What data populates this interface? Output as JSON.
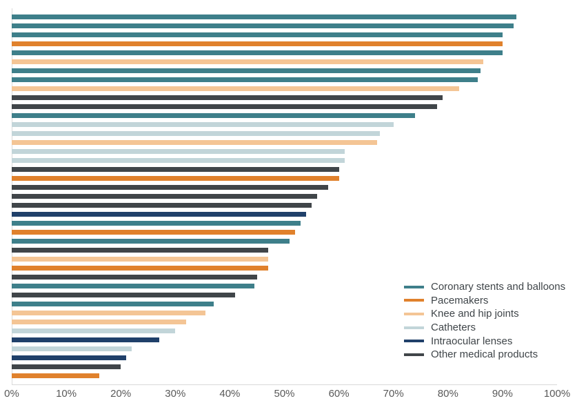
{
  "chart_data": {
    "type": "bar",
    "orientation": "horizontal",
    "title": "",
    "xlabel": "",
    "ylabel": "",
    "grid": false,
    "legend_position": "inside-bottom-right",
    "x_axis": {
      "min": 0,
      "max": 100,
      "tick_step": 10,
      "tick_labels": [
        "0%",
        "10%",
        "20%",
        "30%",
        "40%",
        "50%",
        "60%",
        "70%",
        "80%",
        "90%",
        "100%"
      ]
    },
    "axis_color": "#d9d9d9",
    "tick_label_color": "#595959",
    "legend_text_color": "#3f4549",
    "series": [
      {
        "name": "Coronary stents and balloons",
        "color": "#3e7f8a"
      },
      {
        "name": "Pacemakers",
        "color": "#e0812c"
      },
      {
        "name": "Knee and hip joints",
        "color": "#f4c595"
      },
      {
        "name": "Catheters",
        "color": "#c2d5d9"
      },
      {
        "name": "Intraocular lenses",
        "color": "#20406a"
      },
      {
        "name": "Other medical products",
        "color": "#404549"
      }
    ],
    "bars": [
      {
        "series": "Coronary stents and balloons",
        "value": 92.5
      },
      {
        "series": "Coronary stents and balloons",
        "value": 92
      },
      {
        "series": "Coronary stents and balloons",
        "value": 90
      },
      {
        "series": "Pacemakers",
        "value": 90
      },
      {
        "series": "Coronary stents and balloons",
        "value": 90
      },
      {
        "series": "Knee and hip joints",
        "value": 86.5
      },
      {
        "series": "Coronary stents and balloons",
        "value": 86
      },
      {
        "series": "Coronary stents and balloons",
        "value": 85.5
      },
      {
        "series": "Knee and hip joints",
        "value": 82
      },
      {
        "series": "Other medical products",
        "value": 79
      },
      {
        "series": "Other medical products",
        "value": 78
      },
      {
        "series": "Coronary stents and balloons",
        "value": 74
      },
      {
        "series": "Catheters",
        "value": 70
      },
      {
        "series": "Catheters",
        "value": 67.5
      },
      {
        "series": "Knee and hip joints",
        "value": 67
      },
      {
        "series": "Catheters",
        "value": 61
      },
      {
        "series": "Catheters",
        "value": 61
      },
      {
        "series": "Other medical products",
        "value": 60
      },
      {
        "series": "Pacemakers",
        "value": 60
      },
      {
        "series": "Other medical products",
        "value": 58
      },
      {
        "series": "Other medical products",
        "value": 56
      },
      {
        "series": "Other medical products",
        "value": 55
      },
      {
        "series": "Intraocular lenses",
        "value": 54
      },
      {
        "series": "Coronary stents and balloons",
        "value": 53
      },
      {
        "series": "Pacemakers",
        "value": 52
      },
      {
        "series": "Coronary stents and balloons",
        "value": 51
      },
      {
        "series": "Other medical products",
        "value": 47
      },
      {
        "series": "Knee and hip joints",
        "value": 47
      },
      {
        "series": "Pacemakers",
        "value": 47
      },
      {
        "series": "Other medical products",
        "value": 45
      },
      {
        "series": "Coronary stents and balloons",
        "value": 44.5
      },
      {
        "series": "Other medical products",
        "value": 41
      },
      {
        "series": "Coronary stents and balloons",
        "value": 37
      },
      {
        "series": "Knee and hip joints",
        "value": 35.5
      },
      {
        "series": "Knee and hip joints",
        "value": 32
      },
      {
        "series": "Catheters",
        "value": 30
      },
      {
        "series": "Intraocular lenses",
        "value": 27
      },
      {
        "series": "Catheters",
        "value": 22
      },
      {
        "series": "Intraocular lenses",
        "value": 21
      },
      {
        "series": "Other medical products",
        "value": 20
      },
      {
        "series": "Pacemakers",
        "value": 16
      }
    ]
  }
}
